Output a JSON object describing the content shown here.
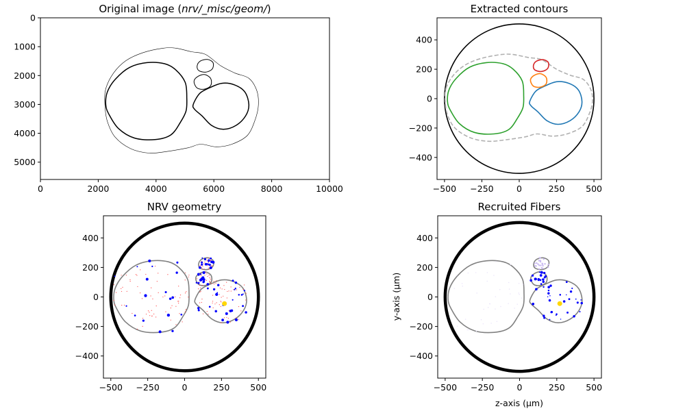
{
  "chart_data": [
    {
      "type": "image-with-contours",
      "title": "Original image (nrv/_misc/geom/)",
      "title_plain": "Original image (",
      "title_italic": "nrv/_misc/geom/",
      "title_close": ")",
      "xlim": [
        0,
        10000
      ],
      "ylim": [
        5600,
        0
      ],
      "xticks": [
        0,
        2000,
        4000,
        6000,
        8000,
        10000
      ],
      "yticks": [
        0,
        1000,
        2000,
        3000,
        4000,
        5000
      ],
      "colors": {
        "outer": "#000000",
        "fascicle": "#000000"
      }
    },
    {
      "type": "contours",
      "title": "Extracted contours",
      "xlim": [
        -550,
        550
      ],
      "ylim": [
        -550,
        550
      ],
      "xticks": [
        -500,
        -250,
        0,
        250,
        500
      ],
      "yticks": [
        -400,
        -200,
        0,
        200,
        400
      ],
      "nerve_radius": 500,
      "series": [
        {
          "color": "#2ca02c"
        },
        {
          "color": "#1f77b4"
        },
        {
          "color": "#ff7f0e"
        },
        {
          "color": "#d62728"
        },
        {
          "color": "#b0b0b0"
        }
      ]
    },
    {
      "type": "scatter",
      "title": "NRV geometry",
      "xlim": [
        -550,
        550
      ],
      "ylim": [
        -550,
        550
      ],
      "xticks": [
        -500,
        -250,
        0,
        250,
        500
      ],
      "yticks": [
        -400,
        -200,
        0,
        200,
        400
      ],
      "nerve_radius": 500,
      "electrode": [
        270,
        -45
      ],
      "colors": {
        "myelinated": "#0000ff",
        "unmyelinated": "#ff4444",
        "fascicle": "#808080",
        "electrode": "#ffd700"
      }
    },
    {
      "type": "scatter",
      "title": "Recruited Fibers",
      "xlabel": "z-axis (μm)",
      "ylabel": "y-axis (μm)",
      "xlim": [
        -550,
        550
      ],
      "ylim": [
        -550,
        550
      ],
      "xticks": [
        -500,
        -250,
        0,
        250,
        500
      ],
      "yticks": [
        -400,
        -200,
        0,
        200,
        400
      ],
      "nerve_radius": 500,
      "electrode": [
        270,
        -45
      ],
      "colors": {
        "recruited": "#0000ff",
        "not_recruited": "#c8b8f0",
        "fascicle": "#808080",
        "electrode": "#ffd700"
      }
    }
  ]
}
